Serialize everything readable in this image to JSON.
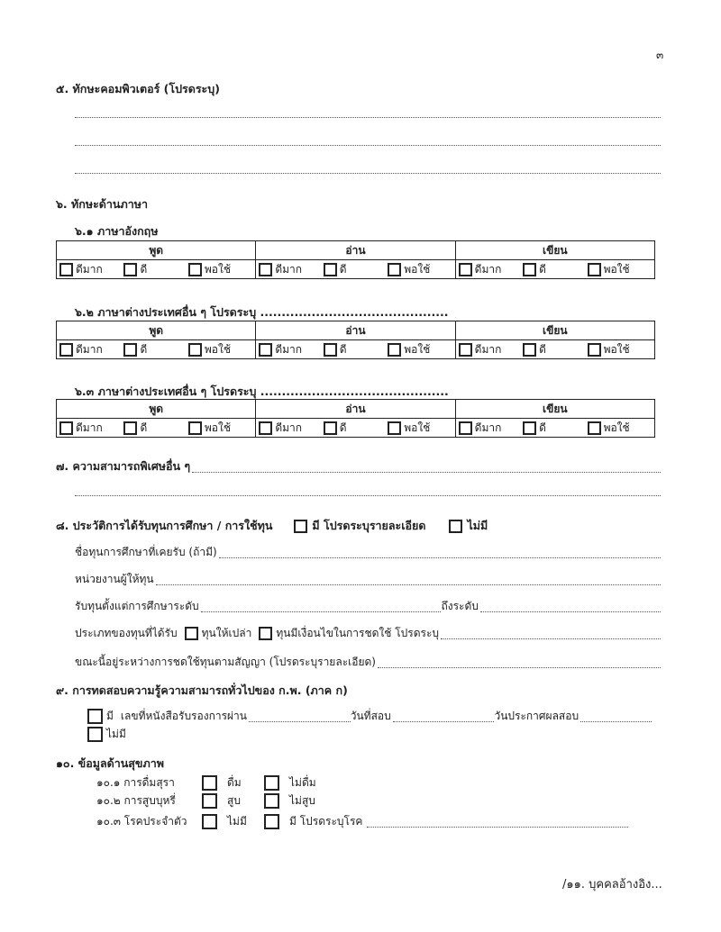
{
  "page_number": "๓",
  "s5": {
    "title": "๕. ทักษะคอมพิวเตอร์ (โปรดระบุ)"
  },
  "s6": {
    "title": "๖. ทักษะด้านภาษา",
    "headers": [
      "พูด",
      "อ่าน",
      "เขียน"
    ],
    "levels": [
      "ดีมาก",
      "ดี",
      "พอใช้"
    ],
    "subs": [
      {
        "label": "๖.๑ ภาษาอังกฤษ"
      },
      {
        "label": "๖.๒ ภาษาต่างประเทศอื่น ๆ โปรดระบุ ............................................"
      },
      {
        "label": "๖.๓ ภาษาต่างประเทศอื่น ๆ โปรดระบุ ............................................"
      }
    ]
  },
  "s7": {
    "title": "๗. ความสามารถพิเศษอื่น ๆ"
  },
  "s8": {
    "title": "๘. ประวัติการได้รับทุนการศึกษา / การใช้ทุน",
    "opt_yes": "มี โปรดระบุรายละเอียด",
    "opt_no": "ไม่มี",
    "scholarship_name": "ชื่อทุนการศึกษาที่เคยรับ (ถ้ามี)",
    "grantor": "หน่วยงานผู้ให้ทุน",
    "from_level": "รับทุนตั้งแต่การศึกษาระดับ",
    "to_level": "ถึงระดับ",
    "type_label": "ประเภทของทุนที่ได้รับ",
    "type_grant": "ทุนให้เปล่า",
    "type_conditional": "ทุนมีเงื่อนไขในการชดใช้ โปรดระบุ",
    "repaying": "ขณะนี้อยู่ระหว่างการชดใช้ทุนตามสัญญา (โปรดระบุรายละเอียด)"
  },
  "s9": {
    "title": "๙. การทดสอบความรู้ความสามารถทั่วไปของ ก.พ. (ภาค ก)",
    "opt_yes": "มี",
    "cert_no": "เลขที่หนังสือรับรองการผ่าน",
    "exam_date": "วันที่สอบ",
    "announce_date": "วันประกาศผลสอบ",
    "opt_no": "ไม่มี"
  },
  "s10": {
    "title": "๑๐. ข้อมูลด้านสุขภาพ",
    "rows": [
      {
        "label": "๑๐.๑ การดื่มสุรา",
        "a": "ดื่ม",
        "b": "ไม่ดื่ม"
      },
      {
        "label": "๑๐.๒ การสูบบุหรี่",
        "a": "สูบ",
        "b": "ไม่สูบ"
      },
      {
        "label": "๑๐.๓ โรคประจำตัว",
        "a": "ไม่มี",
        "b": "มี โปรดระบุโรค"
      }
    ]
  },
  "footer": {
    "next": "/๑๑. บุคคลอ้างอิง..."
  }
}
